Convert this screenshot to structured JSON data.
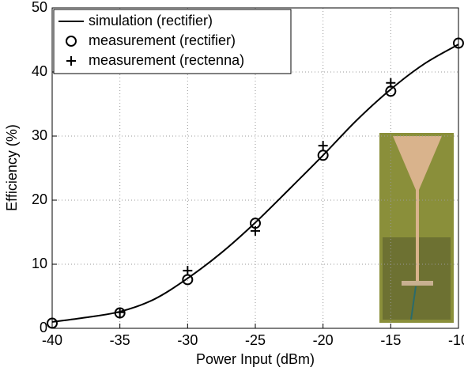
{
  "chart_data": {
    "type": "line",
    "xlabel": "Power Input (dBm)",
    "ylabel": "Efficiency (%)",
    "xlim": [
      -40,
      -10
    ],
    "xticks": [
      -40,
      -35,
      -30,
      -25,
      -20,
      -15,
      -10
    ],
    "ylim": [
      0,
      50
    ],
    "yticks": [
      0,
      10,
      20,
      30,
      40,
      50
    ],
    "grid": true,
    "legend": "upper left",
    "series": [
      {
        "name": "simulation (rectifier)",
        "color": "#000000",
        "marker": "none",
        "x": [
          -40,
          -37.5,
          -35,
          -32.5,
          -30,
          -27.5,
          -25,
          -22.5,
          -20,
          -17.5,
          -15,
          -12.5,
          -10
        ],
        "values": [
          1,
          1.7,
          2.6,
          4.5,
          7.8,
          11.8,
          16.5,
          21.7,
          27,
          32.5,
          37.3,
          41.3,
          44.3
        ]
      },
      {
        "name": "measurement (rectifier)",
        "color": "#000000",
        "marker": "circle",
        "x": [
          -40,
          -35,
          -30,
          -25,
          -20,
          -15,
          -10
        ],
        "values": [
          0.8,
          2.4,
          7.6,
          16.4,
          27,
          37,
          44.5
        ]
      },
      {
        "name": "measurement (rectenna)",
        "color": "#000000",
        "marker": "plus",
        "x": [
          -35,
          -30,
          -25,
          -20,
          -15
        ],
        "values": [
          2.5,
          9,
          15.2,
          28.5,
          38.3
        ]
      }
    ]
  }
}
